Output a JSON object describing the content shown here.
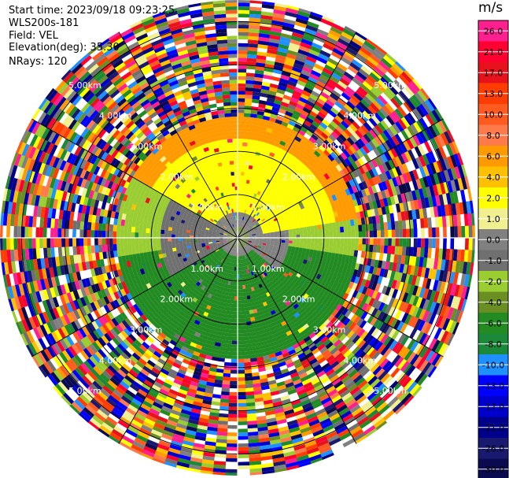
{
  "header": {
    "start_time": "Start time: 2023/09/18 09:23:25",
    "device": "WLS200s-181",
    "field": "Field: VEL",
    "elevation": "Elevation(deg): 35.30",
    "nrays": "NRays: 120"
  },
  "colorbar": {
    "unit": "m/s",
    "ticks": [
      "26.0",
      "21.0",
      "17.0",
      "13.0",
      "10.0",
      "8.0",
      "6.0",
      "4.0",
      "2.0",
      "1.0",
      "0.0",
      "-1.0",
      "-2.0",
      "-4.0",
      "-6.0",
      "-8.0",
      "-10.0",
      "-13.0",
      "-17.0",
      "-21.0",
      "-26.0",
      "-30.0"
    ],
    "colors": [
      "#ff1f8f",
      "#ff0030",
      "#e8121c",
      "#ff3d00",
      "#ff5a1f",
      "#ff7a4a",
      "#ff9a00",
      "#ffc000",
      "#ffff00",
      "#f0f090",
      "#808080",
      "#707070",
      "#9acd32",
      "#6b8e23",
      "#228b22",
      "#1a8a3a",
      "#1e90ff",
      "#0000ff",
      "#0000cd",
      "#00008b",
      "#191970",
      "#0a0a50"
    ]
  },
  "chart_data": {
    "type": "heatmap",
    "projection": "polar PPI",
    "field": "VEL",
    "units": "m/s",
    "nrays": 120,
    "elevation_deg": 35.3,
    "range_rings_km": [
      1.0,
      2.0,
      3.0,
      4.0,
      5.0
    ],
    "range_labels": [
      "1.00km",
      "2.00km",
      "3.00km",
      "4.00km",
      "5.00km"
    ],
    "max_range_km": 5.5,
    "sectors": [
      {
        "azimuth_from_deg": 300,
        "azimuth_to_deg": 80,
        "range_km": [
          0.6,
          2.3
        ],
        "value_ms": 2.0
      },
      {
        "azimuth_from_deg": 80,
        "azimuth_to_deg": 130,
        "range_km": [
          0.3,
          1.2
        ],
        "value_ms": 0.0
      },
      {
        "azimuth_from_deg": 130,
        "azimuth_to_deg": 240,
        "range_km": [
          0.4,
          2.6
        ],
        "value_ms": -6.0
      },
      {
        "azimuth_from_deg": 240,
        "azimuth_to_deg": 300,
        "range_km": [
          0.3,
          1.8
        ],
        "value_ms": -1.0
      },
      {
        "azimuth_from_deg": 300,
        "azimuth_to_deg": 80,
        "range_km": [
          2.3,
          3.0
        ],
        "value_ms": 6.0
      }
    ],
    "noise_beyond_km": 2.8
  }
}
